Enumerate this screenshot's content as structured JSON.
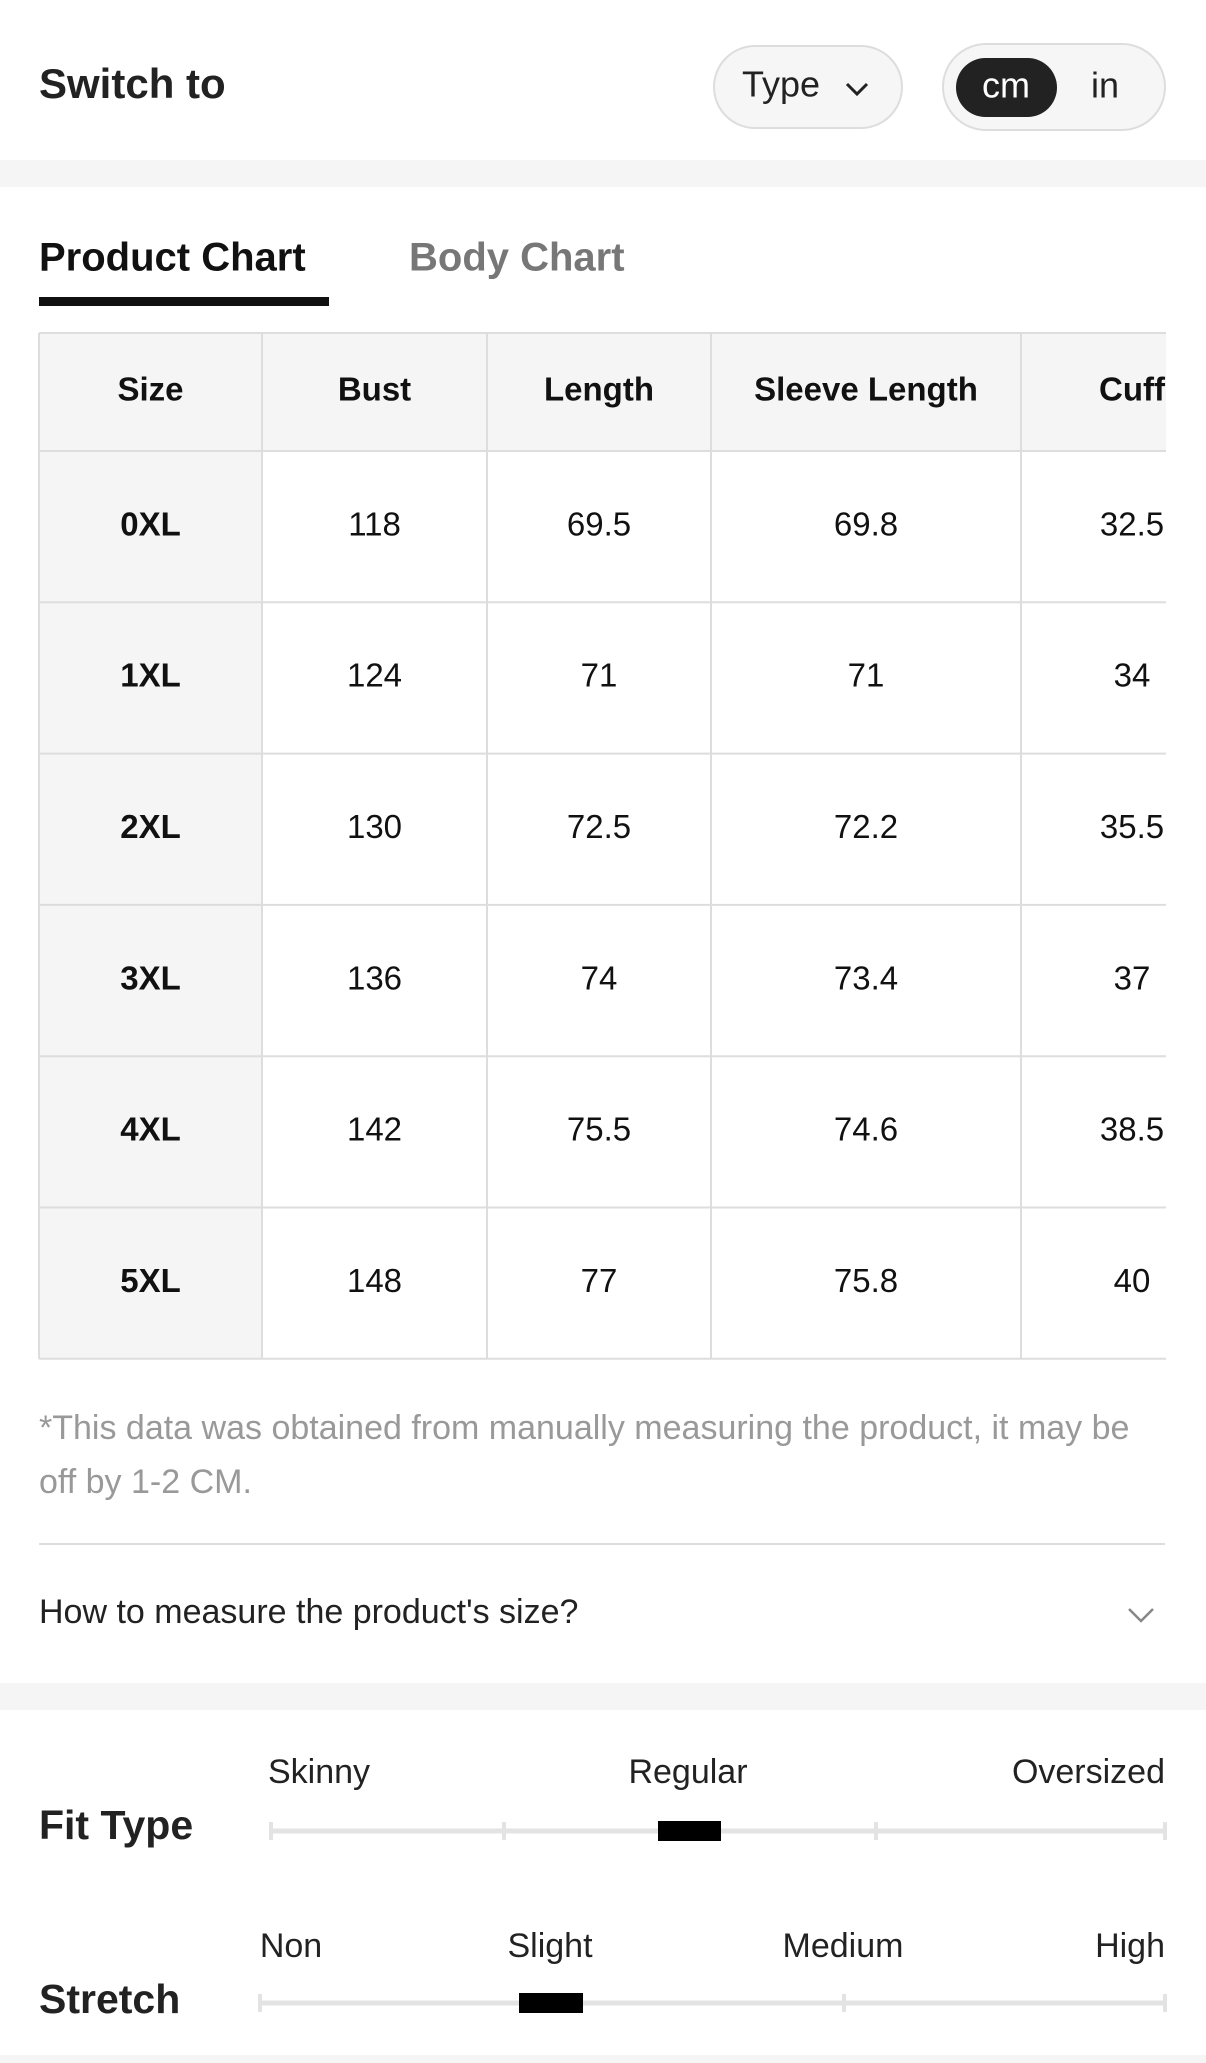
{
  "header": {
    "title": "Switch to",
    "type_button": "Type",
    "units": [
      "cm",
      "in"
    ]
  },
  "tabs": [
    "Product Chart",
    "Body Chart"
  ],
  "table": {
    "columns": [
      "Size",
      "Bust",
      "Length",
      "Sleeve Length",
      "Cuff"
    ],
    "rows": [
      [
        "0XL",
        "118",
        "69.5",
        "69.8",
        "32.5"
      ],
      [
        "1XL",
        "124",
        "71",
        "71",
        "34"
      ],
      [
        "2XL",
        "130",
        "72.5",
        "72.2",
        "35.5"
      ],
      [
        "3XL",
        "136",
        "74",
        "73.4",
        "37"
      ],
      [
        "4XL",
        "142",
        "75.5",
        "74.6",
        "38.5"
      ],
      [
        "5XL",
        "148",
        "77",
        "75.8",
        "40"
      ]
    ]
  },
  "note": "*This data was obtained from manually measuring the product, it may be off by 1-2 CM.",
  "measure_link": "How to measure the product's size?",
  "fit": [
    {
      "label": "Fit Type",
      "scale": [
        "Skinny",
        "Regular",
        "Oversized"
      ]
    },
    {
      "label": "Stretch",
      "scale": [
        "Non",
        "Slight",
        "Medium",
        "High"
      ]
    }
  ]
}
